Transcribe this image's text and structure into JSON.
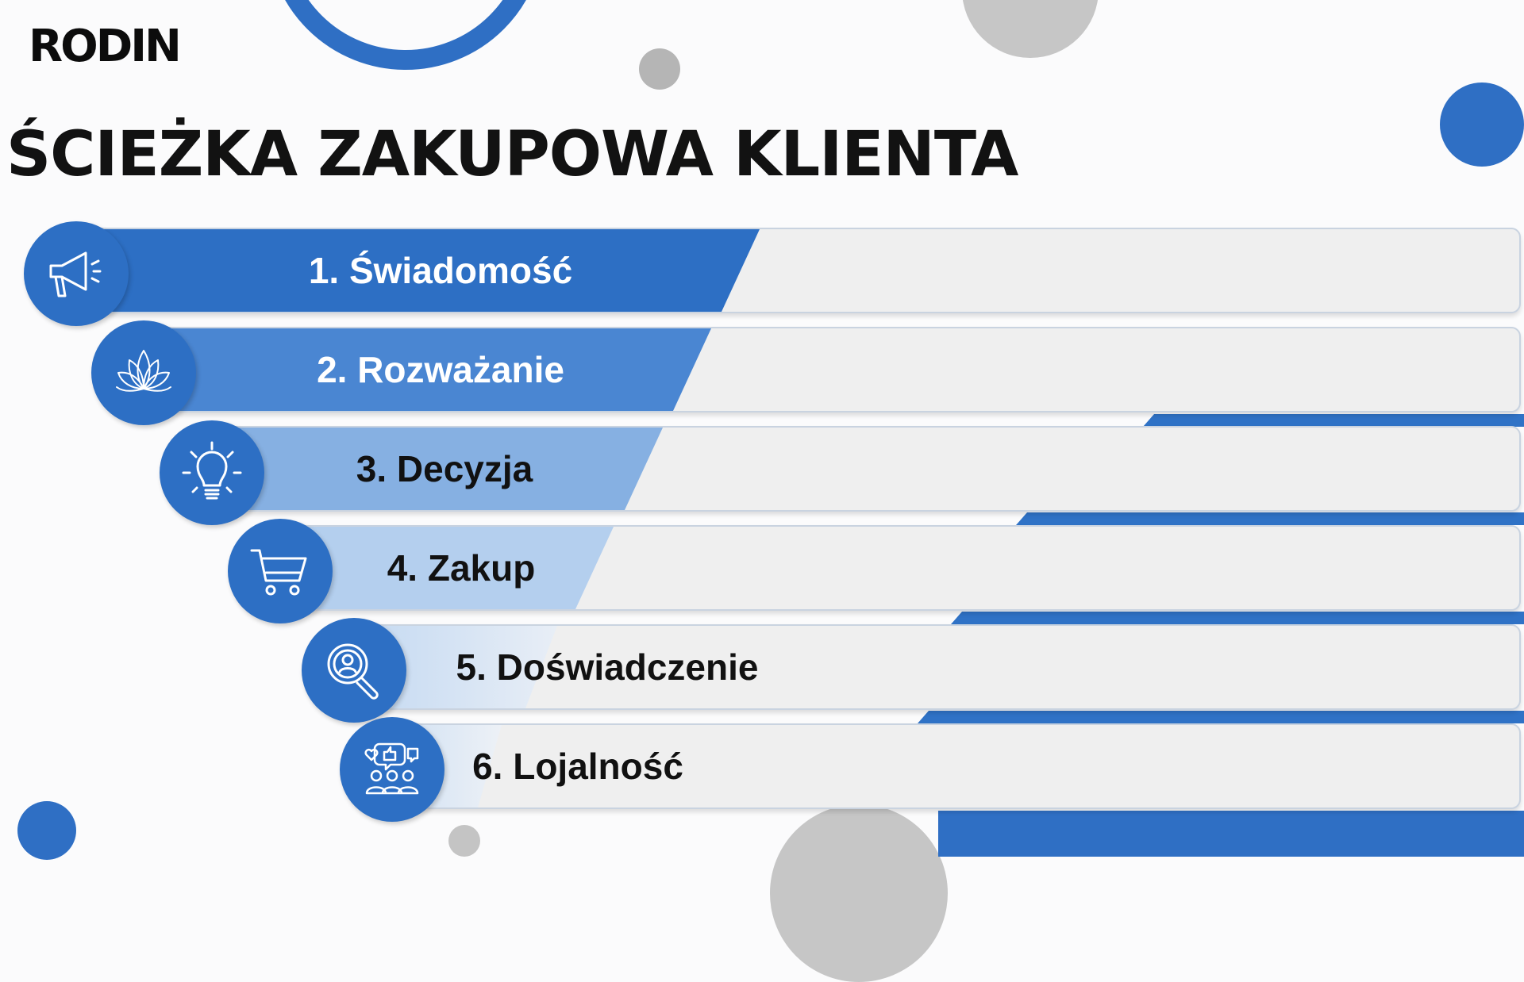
{
  "brand": {
    "logo": "RODIN"
  },
  "title": "ŚCIEŻKA ZAKUPOWA KLIENTA",
  "colors": {
    "accent": "#2d6fc4",
    "gray_decor": "#c4c4c4",
    "bar_bg": "#efefef"
  },
  "stages": [
    {
      "label": "1. Świadomość",
      "icon": "megaphone-icon"
    },
    {
      "label": "2. Rozważanie",
      "icon": "lotus-icon"
    },
    {
      "label": "3. Decyzja",
      "icon": "lightbulb-icon"
    },
    {
      "label": "4. Zakup",
      "icon": "shopping-cart-icon"
    },
    {
      "label": "5. Doświadczenie",
      "icon": "magnifier-user-icon"
    },
    {
      "label": "6. Lojalność",
      "icon": "community-thumbs-up-icon"
    }
  ]
}
